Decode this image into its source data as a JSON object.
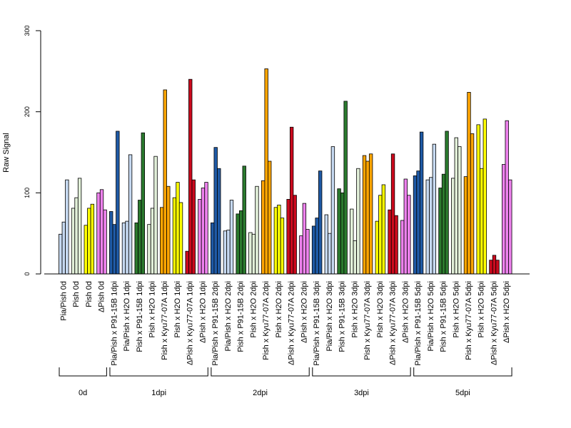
{
  "chart_data": {
    "type": "bar",
    "title": "",
    "xlabel": "",
    "ylabel": "Raw Signal",
    "ylim": [
      0,
      300
    ],
    "yticks": [
      0,
      100,
      200,
      300
    ],
    "colors": {
      "light_blue": "#c6d9f1",
      "dark_blue": "#1f5aa6",
      "light_green": "#e2f0d9",
      "dark_green": "#2b7a2e",
      "yellow": "#ffff00",
      "orange": "#ffa500",
      "red": "#cc0a1e",
      "pink": "#ee82ee"
    },
    "categories": [
      {
        "label": "Pia/Pish 0d",
        "color": "light_blue",
        "values": [
          49,
          64,
          116
        ]
      },
      {
        "label": "Pish 0d",
        "color": "light_green",
        "values": [
          81,
          94,
          118
        ]
      },
      {
        "label": "Pish 0d",
        "color": "yellow",
        "values": [
          60,
          81,
          86
        ]
      },
      {
        "label": "ΔPish 0d",
        "color": "pink",
        "values": [
          100,
          104,
          79
        ]
      },
      {
        "label": "Pia/Pish x P91-15B 1dpi",
        "color": "dark_blue",
        "values": [
          77,
          61,
          176
        ]
      },
      {
        "label": "Pia/Pish x H2O 1dpi",
        "color": "light_blue",
        "values": [
          63,
          65,
          147
        ]
      },
      {
        "label": "Pish x P91-15B 1dpi",
        "color": "dark_green",
        "values": [
          63,
          91,
          174
        ]
      },
      {
        "label": "Pish x H2O 1dpi",
        "color": "light_green",
        "values": [
          61,
          81,
          145
        ]
      },
      {
        "label": "Pish x Kyu77-07A 1dpi",
        "color": "orange",
        "values": [
          82,
          227,
          108
        ]
      },
      {
        "label": "Pish x H2O 1dpi",
        "color": "yellow",
        "values": [
          94,
          113,
          88
        ]
      },
      {
        "label": "ΔPish x Kyu77-07A 1dpi",
        "color": "red",
        "values": [
          28,
          240,
          116
        ]
      },
      {
        "label": "ΔPish x H2O 1dpi",
        "color": "pink",
        "values": [
          92,
          106,
          113
        ]
      },
      {
        "label": "Pia/Pish x P91-15B 2dpi",
        "color": "dark_blue",
        "values": [
          63,
          156,
          130
        ]
      },
      {
        "label": "Pia/Pish x H2O 2dpi",
        "color": "light_blue",
        "values": [
          53,
          54,
          91
        ]
      },
      {
        "label": "Pish x P91-15B 2dpi",
        "color": "dark_green",
        "values": [
          74,
          78,
          133
        ]
      },
      {
        "label": "Pish x H2O 2dpi",
        "color": "light_green",
        "values": [
          51,
          49,
          108
        ]
      },
      {
        "label": "Pish x Kyu77-07A 2dpi",
        "color": "orange",
        "values": [
          115,
          253,
          139
        ]
      },
      {
        "label": "Pish x H2O 2dpi",
        "color": "yellow",
        "values": [
          82,
          85,
          69
        ]
      },
      {
        "label": "ΔPish x Kyu77-07A 2dpi",
        "color": "red",
        "values": [
          92,
          181,
          97
        ]
      },
      {
        "label": "ΔPish x H2O 2dpi",
        "color": "pink",
        "values": [
          47,
          87,
          55
        ]
      },
      {
        "label": "Pia/Pish x P91-15B 3dpi",
        "color": "dark_blue",
        "values": [
          59,
          69,
          127
        ]
      },
      {
        "label": "Pia/Pish x H2O 3dpi",
        "color": "light_blue",
        "values": [
          73,
          50,
          157
        ]
      },
      {
        "label": "Pish x P91-15B 3dpi",
        "color": "dark_green",
        "values": [
          105,
          100,
          213
        ]
      },
      {
        "label": "Pish x H2O 3dpi",
        "color": "light_green",
        "values": [
          80,
          41,
          130
        ]
      },
      {
        "label": "Pish x Kyu77-07A 3dpi",
        "color": "orange",
        "values": [
          146,
          139,
          148
        ]
      },
      {
        "label": "Pish x H2O 3dpi",
        "color": "yellow",
        "values": [
          65,
          97,
          110
        ]
      },
      {
        "label": "ΔPish x Kyu77-07A 3dpi",
        "color": "red",
        "values": [
          79,
          148,
          72
        ]
      },
      {
        "label": "ΔPish x H2O 3dpi",
        "color": "pink",
        "values": [
          66,
          117,
          97
        ]
      },
      {
        "label": "Pia/Pish x P91-15B 5dpi",
        "color": "dark_blue",
        "values": [
          121,
          127,
          175
        ]
      },
      {
        "label": "Pia/Pish x H2O 5dpi",
        "color": "light_blue",
        "values": [
          116,
          119,
          160
        ]
      },
      {
        "label": "Pish x P91-15B 5dpi",
        "color": "dark_green",
        "values": [
          106,
          123,
          176
        ]
      },
      {
        "label": "Pish x H2O 5dpi",
        "color": "light_green",
        "values": [
          118,
          168,
          157
        ]
      },
      {
        "label": "Pish x Kyu77-07A 5dpi",
        "color": "orange",
        "values": [
          120,
          224,
          173
        ]
      },
      {
        "label": "Pish x H2O 5dpi",
        "color": "yellow",
        "values": [
          184,
          130,
          191
        ]
      },
      {
        "label": "ΔPish x Kyu77-07A 5dpi",
        "color": "red",
        "values": [
          17,
          23,
          17
        ]
      },
      {
        "label": "ΔPish x H2O 5dpi",
        "color": "pink",
        "values": [
          135,
          189,
          116
        ]
      }
    ],
    "groups": [
      {
        "label": "0d",
        "first": 0,
        "last": 3
      },
      {
        "label": "1dpi",
        "first": 4,
        "last": 11
      },
      {
        "label": "2dpi",
        "first": 12,
        "last": 19
      },
      {
        "label": "3dpi",
        "first": 20,
        "last": 27
      },
      {
        "label": "5dpi",
        "first": 28,
        "last": 35
      }
    ]
  }
}
